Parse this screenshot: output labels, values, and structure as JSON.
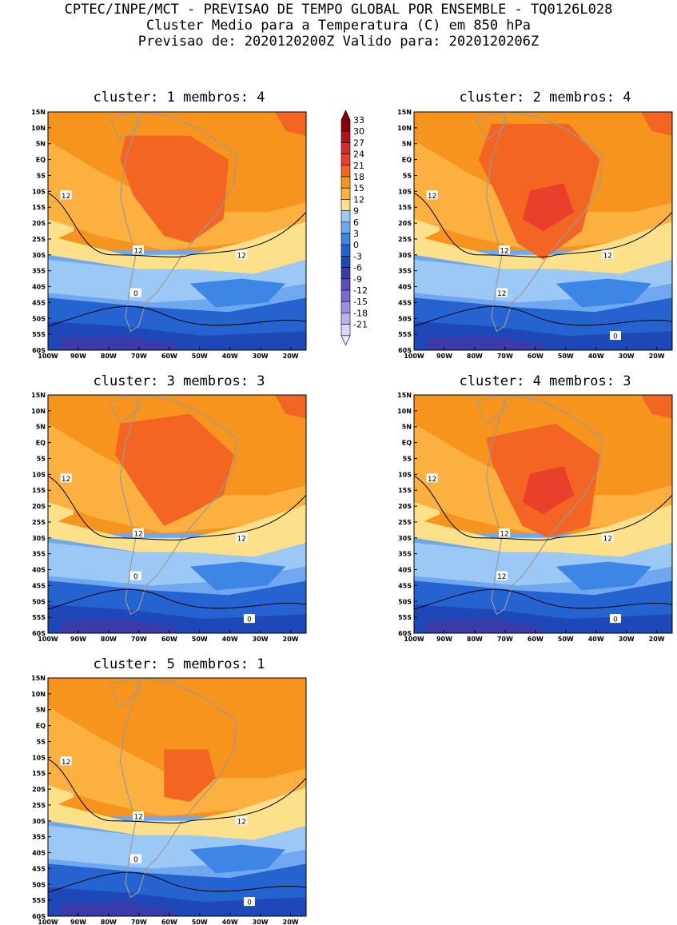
{
  "header": {
    "line1": "CPTEC/INPE/MCT - PREVISAO DE TEMPO GLOBAL POR ENSEMBLE - TQ0126L028",
    "line2": "Cluster Medio para a Temperatura (C) em 850 hPa",
    "line3": "Previsao de: 2020120200Z   Valido para: 2020120206Z"
  },
  "chart_data": {
    "type": "heatmap",
    "variable": "Temperatura (C) em 850 hPa",
    "x_ticks": [
      "100W",
      "90W",
      "80W",
      "70W",
      "60W",
      "50W",
      "40W",
      "30W",
      "20W"
    ],
    "y_ticks": [
      "15N",
      "10N",
      "5N",
      "EQ",
      "5S",
      "10S",
      "15S",
      "20S",
      "25S",
      "30S",
      "35S",
      "40S",
      "45S",
      "50S",
      "55S",
      "60S"
    ],
    "colorbar": {
      "levels": [
        "33",
        "30",
        "27",
        "24",
        "21",
        "18",
        "15",
        "12",
        "9",
        "6",
        "3",
        "0",
        "-3",
        "-6",
        "-9",
        "-12",
        "-15",
        "-18",
        "-21"
      ],
      "colors": [
        "#8b0000",
        "#b5121b",
        "#d22f2f",
        "#e8402a",
        "#f26522",
        "#f7941d",
        "#fbb040",
        "#fde08a",
        "#9cc8f5",
        "#6fa8ee",
        "#3d86e6",
        "#2563d1",
        "#1e48b8",
        "#3a3aa8",
        "#5b4ec0",
        "#7a6ad0",
        "#9a8ce0",
        "#bdb2ee",
        "#ddd6fa"
      ]
    },
    "panels": [
      {
        "label": "cluster: 1  membros: 4",
        "contours": [
          "12",
          "12",
          "12",
          "0"
        ]
      },
      {
        "label": "cluster: 2  membros: 4",
        "contours": [
          "12",
          "12",
          "12",
          "12",
          "0"
        ]
      },
      {
        "label": "cluster: 3  membros: 3",
        "contours": [
          "12",
          "12",
          "12",
          "0",
          "0"
        ]
      },
      {
        "label": "cluster: 4  membros: 3",
        "contours": [
          "12",
          "12",
          "12",
          "12",
          "0"
        ]
      },
      {
        "label": "cluster: 5  membros: 1",
        "contours": [
          "12",
          "12",
          "12",
          "0",
          "0"
        ]
      }
    ]
  }
}
